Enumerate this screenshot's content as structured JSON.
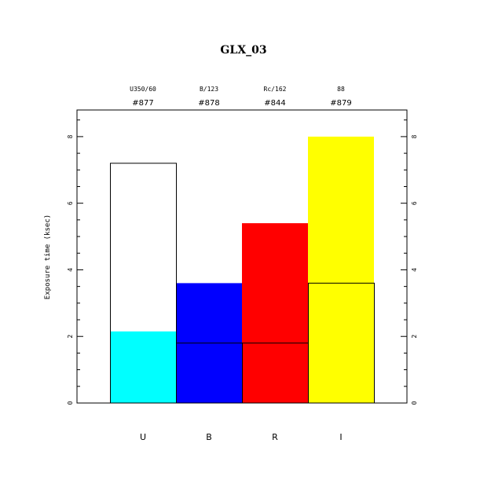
{
  "chart_data": {
    "type": "bar",
    "title": "GLX_03",
    "ylabel": "Exposure time (ksec)",
    "xlabel": "",
    "ylim": [
      0,
      8.8
    ],
    "yticks": [
      0,
      2,
      4,
      6,
      8
    ],
    "categories": [
      "U",
      "B",
      "R",
      "I"
    ],
    "filters": [
      "U350/60",
      "B/123",
      "Rc/162",
      "88"
    ],
    "ids": [
      "#877",
      "#878",
      "#844",
      "#879"
    ],
    "colors": [
      "#00ffff",
      "#0000ff",
      "#ff0000",
      "#ffff00"
    ],
    "series": [
      {
        "values": [
          2.15,
          3.6,
          5.4,
          8.0
        ]
      },
      {
        "values": [
          7.2,
          1.8,
          1.8,
          3.6
        ]
      }
    ]
  }
}
